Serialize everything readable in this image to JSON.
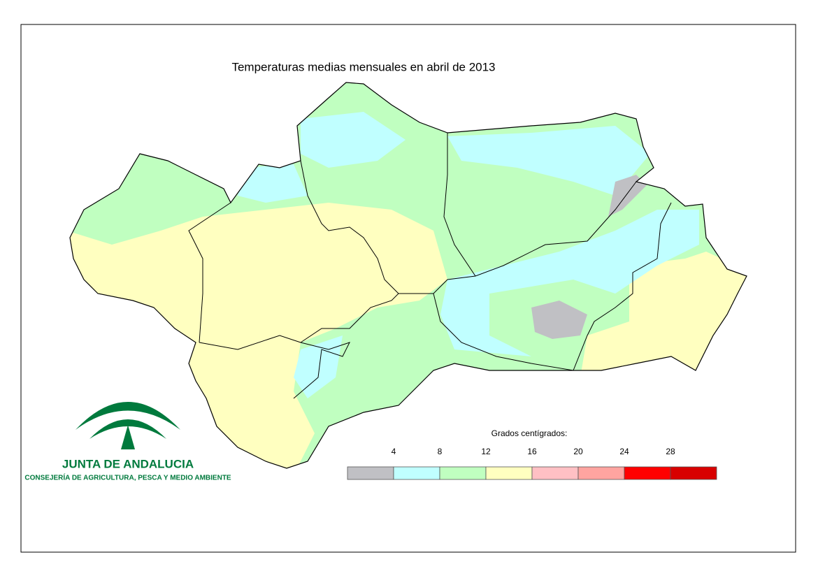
{
  "title": "Temperaturas medias mensuales en abril de 2013",
  "legend": {
    "title": "Grados centígrados:",
    "ticks": [
      4,
      8,
      12,
      16,
      20,
      24,
      28
    ],
    "colors": [
      "#c0c0c4",
      "#c0ffff",
      "#c0ffc0",
      "#ffffc0",
      "#ffc0c4",
      "#ffa4a0",
      "#ff0000",
      "#d80000"
    ]
  },
  "logo": {
    "name": "JUNTA DE ANDALUCIA",
    "department": "CONSEJERÍA DE AGRICULTURA, PESCA Y MEDIO AMBIENTE"
  }
}
